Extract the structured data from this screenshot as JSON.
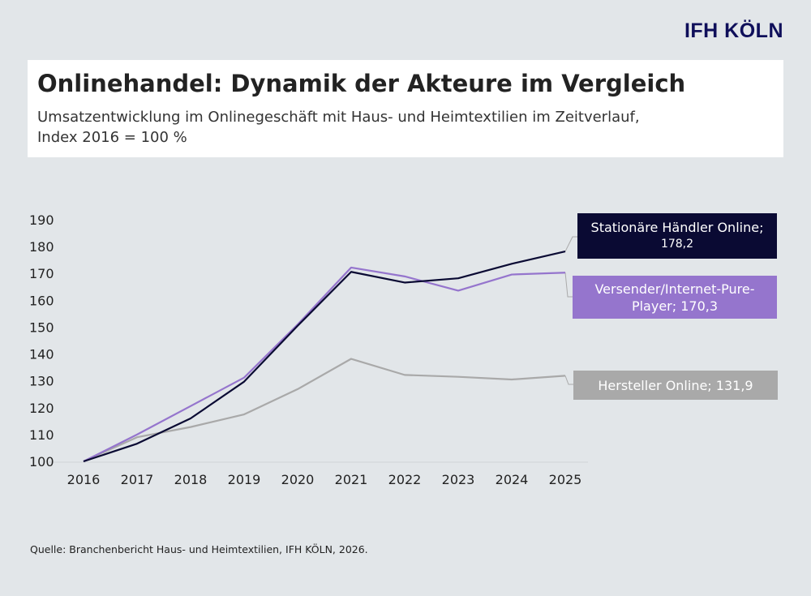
{
  "logo": "IFH KÖLN",
  "title": "Onlinehandel: Dynamik der Akteure im Vergleich",
  "subtitle_line1": "Umsatzentwicklung im Onlinegeschäft mit Haus- und Heimtextilien im Zeitverlauf,",
  "subtitle_line2": "Index 2016 = 100 %",
  "source": "Quelle: Branchenbericht Haus- und Heimtextilien, IFH KÖLN, 2026.",
  "chart_data": {
    "type": "line",
    "x": [
      "2016",
      "2017",
      "2018",
      "2019",
      "2020",
      "2021",
      "2022",
      "2023",
      "2024",
      "2025"
    ],
    "ylim": [
      100,
      190
    ],
    "yticks": [
      100,
      110,
      120,
      130,
      140,
      150,
      160,
      170,
      180,
      190
    ],
    "grid": false,
    "series": [
      {
        "name": "Stationäre Händler Online",
        "end_label": "178,2",
        "color": "#0a0a33",
        "values": [
          100,
          106.6,
          116,
          129.7,
          150.5,
          170.6,
          166.6,
          168.2,
          173.6,
          178.2
        ]
      },
      {
        "name": "Versender/Internet-Pure-Player",
        "end_label": "170,3",
        "color": "#9575cd",
        "values": [
          100,
          110,
          120.6,
          131.2,
          151,
          172.2,
          168.9,
          163.6,
          169.6,
          170.3
        ]
      },
      {
        "name": "Hersteller Online",
        "end_label": "131,9",
        "color": "#a9a9a9",
        "values": [
          100,
          109,
          112.8,
          117.5,
          126.9,
          138.2,
          132.2,
          131.5,
          130.5,
          131.9
        ]
      }
    ],
    "labels": [
      "Stationäre Händler Online;",
      "178,2",
      "Versender/Internet-Pure-",
      "Player; 170,3",
      "Hersteller Online; 131,9"
    ]
  }
}
